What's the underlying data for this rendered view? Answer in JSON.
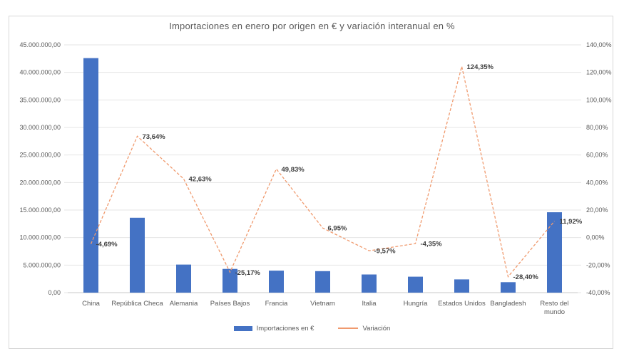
{
  "chart_data": {
    "type": "combo-bar-line",
    "title": "Importaciones en enero por origen en € y variación interanual en %",
    "categories": [
      "China",
      "República Checa",
      "Alemania",
      "Países Bajos",
      "Francia",
      "Vietnam",
      "Italia",
      "Hungría",
      "Estados Unidos",
      "Bangladesh",
      "Resto del mundo"
    ],
    "x_tick_lines": [
      [
        "China"
      ],
      [
        "República Checa"
      ],
      [
        "Alemania"
      ],
      [
        "Países Bajos"
      ],
      [
        "Francia"
      ],
      [
        "Vietnam"
      ],
      [
        "Italia"
      ],
      [
        "Hungría"
      ],
      [
        "Estados Unidos"
      ],
      [
        "Bangladesh"
      ],
      [
        "Resto del",
        "mundo"
      ]
    ],
    "series": [
      {
        "name": "Importaciones en €",
        "type": "bar",
        "axis": "left",
        "color": "#4472C4",
        "values": [
          42600000,
          13600000,
          5100000,
          4300000,
          4000000,
          3900000,
          3300000,
          2900000,
          2400000,
          1900000,
          14600000
        ]
      },
      {
        "name": "Variación",
        "type": "line",
        "axis": "right",
        "color": "#F09A6E",
        "values": [
          -4.69,
          73.64,
          42.63,
          -25.17,
          49.83,
          6.95,
          -9.57,
          -4.35,
          124.35,
          -28.4,
          11.92
        ],
        "point_labels": [
          "-4,69%",
          "73,64%",
          "42,63%",
          "-25,17%",
          "49,83%",
          "6,95%",
          "-9,57%",
          "-4,35%",
          "124,35%",
          "-28,40%",
          "11,92%"
        ]
      }
    ],
    "left_axis": {
      "min": 0,
      "max": 45000000,
      "step": 5000000,
      "tick_labels_top_to_bottom": [
        "45.000.000,00",
        "40.000.000,00",
        "35.000.000,00",
        "30.000.000,00",
        "25.000.000,00",
        "20.000.000,00",
        "15.000.000,00",
        "10.000.000,00",
        "5.000.000,00",
        "0,00"
      ]
    },
    "right_axis": {
      "min": -40,
      "max": 140,
      "step": 20,
      "tick_labels_top_to_bottom": [
        "140,00%",
        "120,00%",
        "100,00%",
        "80,00%",
        "60,00%",
        "40,00%",
        "20,00%",
        "0,00%",
        "-20,00%",
        "-40,00%"
      ]
    },
    "grid": true,
    "legend_position": "bottom",
    "colors": {
      "grid": "#E5E5E5",
      "axis_line": "#C9C9C9",
      "axis_text": "#595959",
      "title_text": "#595959",
      "data_label_text": "#3F3F3F",
      "frame_border": "#D8D8D8",
      "bar": "#4472C4",
      "line": "#F09A6E"
    }
  }
}
